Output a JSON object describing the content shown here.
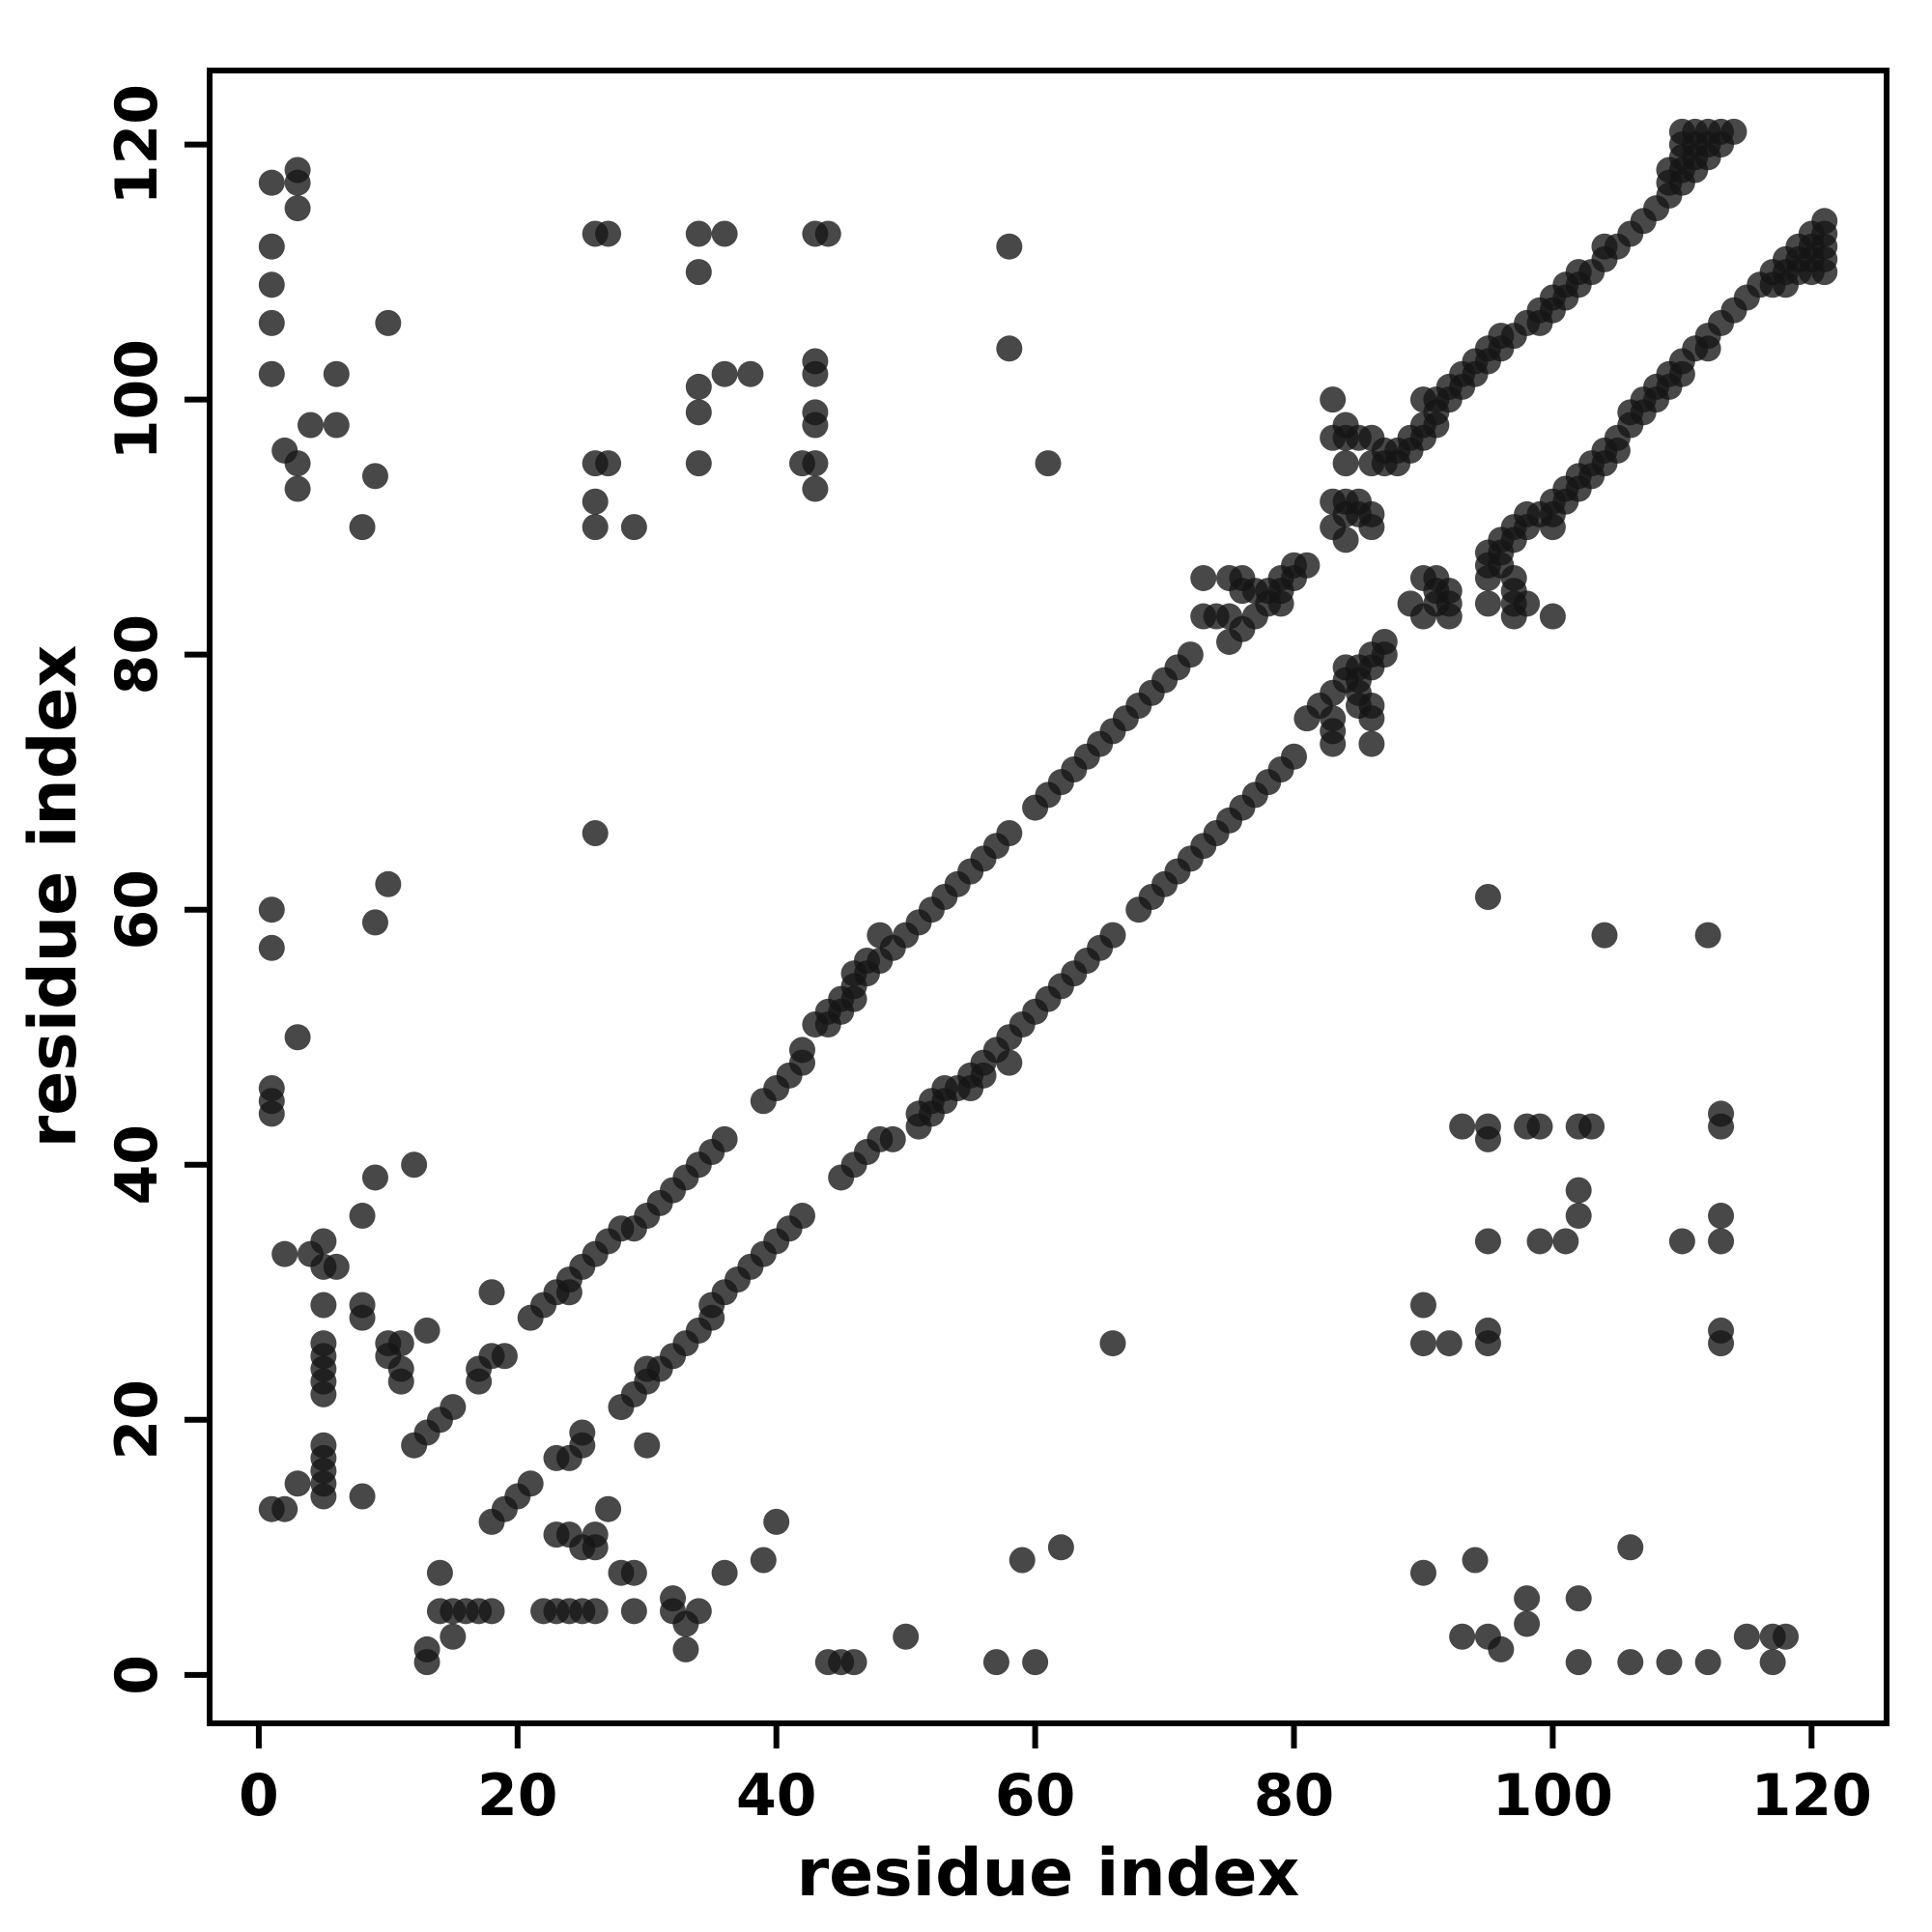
{
  "chart_data": {
    "type": "scatter",
    "title": "",
    "xlabel": "residue index",
    "ylabel": "residue index",
    "xlim": [
      -3.8,
      125.8
    ],
    "ylim": [
      -3.8,
      125.8
    ],
    "xticks": [
      0,
      20,
      40,
      60,
      80,
      100,
      120
    ],
    "yticks": [
      0,
      20,
      40,
      60,
      80,
      100,
      120
    ],
    "grid": false,
    "legend": null,
    "point_color": "#141414",
    "point_opacity": 0.78,
    "point_radius_px": 13.5,
    "axis_color": "#000000",
    "background_color": "#ffffff",
    "symmetric": true,
    "description": "Protein residue-residue contact map; each pair (i,j) is drawn at (i,j) and mirrored at (j,i).",
    "contacts": [
      [
        1,
        117
      ],
      [
        3,
        118
      ],
      [
        3,
        117
      ],
      [
        3,
        115
      ],
      [
        1,
        112
      ],
      [
        1,
        109
      ],
      [
        1,
        106
      ],
      [
        10,
        106
      ],
      [
        1,
        102
      ],
      [
        6,
        102
      ],
      [
        4,
        98
      ],
      [
        6,
        98
      ],
      [
        2,
        96
      ],
      [
        3,
        95
      ],
      [
        9,
        94
      ],
      [
        3,
        93
      ],
      [
        8,
        90
      ],
      [
        26,
        113
      ],
      [
        27,
        113
      ],
      [
        34,
        113
      ],
      [
        36,
        113
      ],
      [
        34,
        110
      ],
      [
        36,
        102
      ],
      [
        38,
        102
      ],
      [
        34,
        101
      ],
      [
        34,
        99
      ],
      [
        26,
        95
      ],
      [
        27,
        95
      ],
      [
        34,
        95
      ],
      [
        26,
        92
      ],
      [
        26,
        90
      ],
      [
        29,
        90
      ],
      [
        43,
        113
      ],
      [
        44,
        113
      ],
      [
        58,
        112
      ],
      [
        58,
        104
      ],
      [
        43,
        103
      ],
      [
        43,
        102
      ],
      [
        43,
        99
      ],
      [
        43,
        98
      ],
      [
        42,
        95
      ],
      [
        43,
        95
      ],
      [
        43,
        93
      ],
      [
        61,
        95
      ],
      [
        1,
        60
      ],
      [
        1,
        57
      ],
      [
        9,
        59
      ],
      [
        10,
        62
      ],
      [
        26,
        66
      ],
      [
        3,
        50
      ],
      [
        1,
        46
      ],
      [
        1,
        45
      ],
      [
        1,
        44
      ],
      [
        9,
        39
      ],
      [
        12,
        40
      ],
      [
        8,
        36
      ],
      [
        5,
        34
      ],
      [
        4,
        33
      ],
      [
        5,
        32
      ],
      [
        6,
        32
      ],
      [
        8,
        29
      ],
      [
        8,
        28
      ],
      [
        5,
        29
      ],
      [
        2,
        33
      ],
      [
        13,
        27
      ],
      [
        18,
        30
      ],
      [
        18,
        25
      ],
      [
        19,
        25
      ],
      [
        17,
        24
      ],
      [
        17,
        23
      ],
      [
        10,
        26
      ],
      [
        11,
        26
      ],
      [
        10,
        25
      ],
      [
        11,
        24
      ],
      [
        11,
        23
      ],
      [
        5,
        26
      ],
      [
        5,
        25
      ],
      [
        5,
        24
      ],
      [
        5,
        23
      ],
      [
        5,
        22
      ],
      [
        5,
        18
      ],
      [
        5,
        17
      ],
      [
        5,
        16
      ],
      [
        5,
        15
      ],
      [
        5,
        14
      ],
      [
        3,
        15
      ],
      [
        8,
        14
      ],
      [
        1,
        13
      ],
      [
        2,
        13
      ],
      [
        73,
        83
      ],
      [
        74,
        83
      ],
      [
        75,
        83
      ],
      [
        77,
        83
      ],
      [
        75,
        81
      ],
      [
        76,
        82
      ],
      [
        78,
        84
      ],
      [
        79,
        84
      ],
      [
        76,
        85
      ],
      [
        77,
        85
      ],
      [
        78,
        85
      ],
      [
        79,
        85
      ],
      [
        73,
        86
      ],
      [
        75,
        86
      ],
      [
        76,
        86
      ],
      [
        79,
        86
      ],
      [
        80,
        86
      ],
      [
        80,
        87
      ],
      [
        81,
        87
      ],
      [
        83,
        90
      ],
      [
        86,
        90
      ],
      [
        83,
        92
      ],
      [
        84,
        92
      ],
      [
        85,
        92
      ],
      [
        84,
        95
      ],
      [
        86,
        95
      ],
      [
        87,
        95
      ],
      [
        88,
        95
      ],
      [
        83,
        97
      ],
      [
        84,
        97
      ],
      [
        85,
        97
      ],
      [
        86,
        97
      ],
      [
        87,
        96
      ],
      [
        88,
        96
      ],
      [
        89,
        96
      ],
      [
        83,
        100
      ],
      [
        84,
        89
      ],
      [
        84,
        91
      ],
      [
        85,
        91
      ],
      [
        86,
        91
      ],
      [
        84,
        98
      ],
      [
        12,
        18
      ],
      [
        13,
        19
      ],
      [
        14,
        20
      ],
      [
        15,
        21
      ],
      [
        21,
        28
      ],
      [
        22,
        29
      ],
      [
        23,
        30
      ],
      [
        24,
        30
      ],
      [
        24,
        31
      ],
      [
        25,
        32
      ],
      [
        26,
        33
      ],
      [
        27,
        34
      ],
      [
        28,
        35
      ],
      [
        29,
        35
      ],
      [
        30,
        36
      ],
      [
        31,
        37
      ],
      [
        32,
        38
      ],
      [
        33,
        39
      ],
      [
        34,
        40
      ],
      [
        35,
        41
      ],
      [
        36,
        42
      ],
      [
        39,
        45
      ],
      [
        40,
        46
      ],
      [
        41,
        47
      ],
      [
        42,
        48
      ],
      [
        42,
        49
      ],
      [
        43,
        51
      ],
      [
        44,
        51
      ],
      [
        44,
        52
      ],
      [
        45,
        52
      ],
      [
        45,
        53
      ],
      [
        46,
        53
      ],
      [
        46,
        54
      ],
      [
        46,
        55
      ],
      [
        47,
        55
      ],
      [
        47,
        56
      ],
      [
        48,
        56
      ],
      [
        49,
        57
      ],
      [
        48,
        58
      ],
      [
        50,
        58
      ],
      [
        51,
        59
      ],
      [
        52,
        60
      ],
      [
        53,
        61
      ],
      [
        54,
        62
      ],
      [
        55,
        63
      ],
      [
        56,
        64
      ],
      [
        57,
        65
      ],
      [
        58,
        66
      ],
      [
        60,
        68
      ],
      [
        61,
        69
      ],
      [
        62,
        70
      ],
      [
        63,
        71
      ],
      [
        64,
        72
      ],
      [
        65,
        73
      ],
      [
        66,
        74
      ],
      [
        67,
        75
      ],
      [
        68,
        76
      ],
      [
        69,
        77
      ],
      [
        70,
        78
      ],
      [
        71,
        79
      ],
      [
        72,
        80
      ],
      [
        89,
        97
      ],
      [
        90,
        97
      ],
      [
        90,
        98
      ],
      [
        91,
        98
      ],
      [
        91,
        99
      ],
      [
        90,
        100
      ],
      [
        91,
        100
      ],
      [
        92,
        100
      ],
      [
        92,
        101
      ],
      [
        93,
        101
      ],
      [
        93,
        102
      ],
      [
        94,
        102
      ],
      [
        94,
        103
      ],
      [
        95,
        103
      ],
      [
        95,
        104
      ],
      [
        96,
        104
      ],
      [
        96,
        105
      ],
      [
        97,
        105
      ],
      [
        98,
        106
      ],
      [
        99,
        106
      ],
      [
        99,
        107
      ],
      [
        100,
        107
      ],
      [
        100,
        108
      ],
      [
        101,
        108
      ],
      [
        101,
        109
      ],
      [
        102,
        109
      ],
      [
        102,
        110
      ],
      [
        103,
        110
      ],
      [
        104,
        111
      ],
      [
        104,
        112
      ],
      [
        105,
        112
      ],
      [
        106,
        113
      ],
      [
        107,
        114
      ],
      [
        108,
        115
      ],
      [
        109,
        116
      ],
      [
        109,
        117
      ],
      [
        110,
        117
      ],
      [
        110,
        118
      ],
      [
        109,
        118
      ],
      [
        111,
        118
      ],
      [
        110,
        119
      ],
      [
        111,
        119
      ],
      [
        112,
        119
      ],
      [
        110,
        120
      ],
      [
        111,
        120
      ],
      [
        112,
        120
      ],
      [
        113,
        120
      ],
      [
        110,
        121
      ],
      [
        111,
        121
      ],
      [
        112,
        121
      ],
      [
        113,
        121
      ],
      [
        114,
        121
      ]
    ]
  }
}
